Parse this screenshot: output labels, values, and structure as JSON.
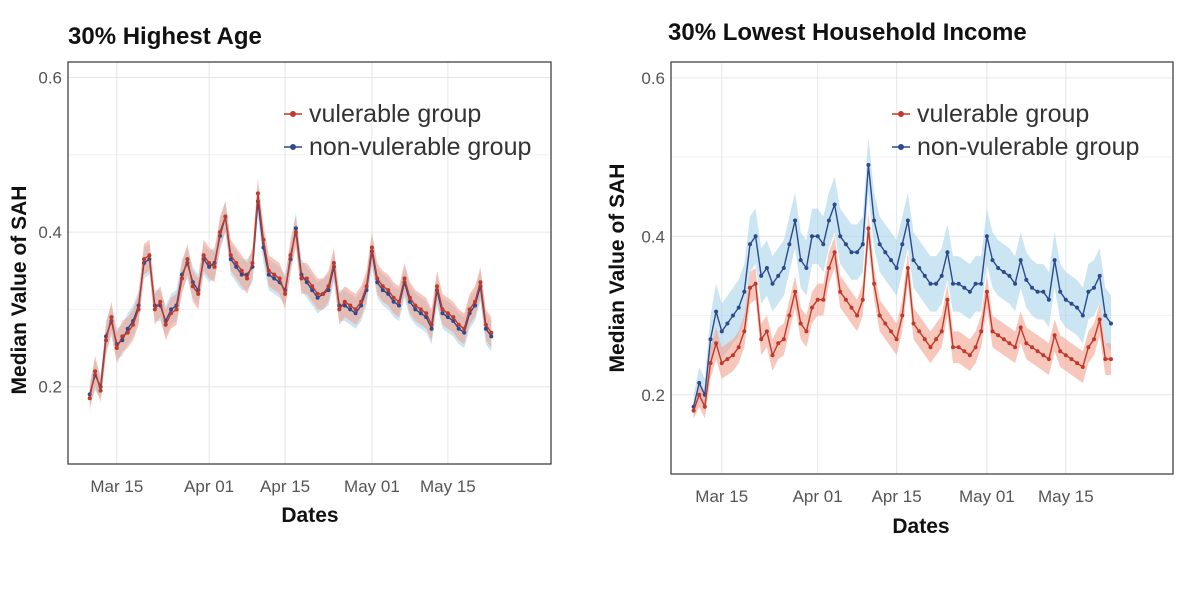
{
  "chart_data": [
    {
      "type": "line",
      "title": "30% Highest Age",
      "xlabel": "Dates",
      "ylabel": "Median Value of SAH",
      "x_ticks": [
        "Mar 15",
        "Apr 01",
        "Apr 15",
        "May 01",
        "May 15"
      ],
      "y_ticks": [
        "0.2",
        "0.4",
        "0.6"
      ],
      "ylim": [
        0.1,
        0.62
      ],
      "xlim": [
        "Mar 06",
        "Jun 03"
      ],
      "x_start": "Mar 10",
      "legend_position": "top-right",
      "grid": true,
      "series": [
        {
          "name": "vulerable group",
          "color": "#c0392b",
          "band_color": "#f2a28f",
          "values": [
            0.185,
            0.22,
            0.195,
            0.26,
            0.29,
            0.25,
            0.265,
            0.27,
            0.28,
            0.3,
            0.365,
            0.37,
            0.3,
            0.31,
            0.28,
            0.295,
            0.3,
            0.34,
            0.365,
            0.33,
            0.32,
            0.37,
            0.36,
            0.355,
            0.4,
            0.42,
            0.37,
            0.36,
            0.35,
            0.34,
            0.36,
            0.45,
            0.39,
            0.35,
            0.345,
            0.34,
            0.32,
            0.37,
            0.4,
            0.34,
            0.34,
            0.33,
            0.32,
            0.32,
            0.33,
            0.36,
            0.3,
            0.31,
            0.305,
            0.3,
            0.31,
            0.33,
            0.38,
            0.34,
            0.33,
            0.325,
            0.315,
            0.31,
            0.34,
            0.315,
            0.305,
            0.3,
            0.295,
            0.28,
            0.33,
            0.3,
            0.295,
            0.29,
            0.28,
            0.275,
            0.3,
            0.31,
            0.335,
            0.28,
            0.27
          ],
          "lower": [
            0.17,
            0.2,
            0.18,
            0.24,
            0.27,
            0.23,
            0.245,
            0.25,
            0.26,
            0.28,
            0.345,
            0.35,
            0.28,
            0.29,
            0.26,
            0.275,
            0.28,
            0.32,
            0.345,
            0.31,
            0.3,
            0.35,
            0.34,
            0.335,
            0.38,
            0.4,
            0.35,
            0.34,
            0.33,
            0.32,
            0.34,
            0.43,
            0.37,
            0.33,
            0.325,
            0.32,
            0.3,
            0.35,
            0.38,
            0.32,
            0.32,
            0.31,
            0.3,
            0.3,
            0.31,
            0.34,
            0.28,
            0.29,
            0.285,
            0.28,
            0.29,
            0.31,
            0.36,
            0.32,
            0.31,
            0.305,
            0.295,
            0.29,
            0.32,
            0.295,
            0.285,
            0.28,
            0.275,
            0.26,
            0.31,
            0.28,
            0.275,
            0.27,
            0.26,
            0.255,
            0.28,
            0.29,
            0.315,
            0.26,
            0.25
          ],
          "upper": [
            0.2,
            0.24,
            0.21,
            0.28,
            0.31,
            0.27,
            0.285,
            0.29,
            0.3,
            0.32,
            0.385,
            0.39,
            0.32,
            0.33,
            0.3,
            0.315,
            0.32,
            0.36,
            0.385,
            0.35,
            0.34,
            0.39,
            0.38,
            0.375,
            0.42,
            0.44,
            0.39,
            0.38,
            0.37,
            0.36,
            0.38,
            0.47,
            0.41,
            0.37,
            0.365,
            0.36,
            0.34,
            0.39,
            0.42,
            0.36,
            0.36,
            0.35,
            0.34,
            0.34,
            0.35,
            0.38,
            0.32,
            0.33,
            0.325,
            0.32,
            0.33,
            0.35,
            0.4,
            0.36,
            0.35,
            0.345,
            0.335,
            0.33,
            0.36,
            0.335,
            0.325,
            0.32,
            0.315,
            0.3,
            0.35,
            0.32,
            0.315,
            0.31,
            0.3,
            0.295,
            0.32,
            0.33,
            0.355,
            0.3,
            0.29
          ]
        },
        {
          "name": "non-vulerable group",
          "color": "#2c4a8c",
          "band_color": "#a9d4ea",
          "values": [
            0.19,
            0.215,
            0.2,
            0.265,
            0.285,
            0.255,
            0.26,
            0.275,
            0.285,
            0.305,
            0.36,
            0.365,
            0.305,
            0.305,
            0.285,
            0.3,
            0.305,
            0.345,
            0.36,
            0.335,
            0.325,
            0.365,
            0.355,
            0.36,
            0.395,
            0.42,
            0.365,
            0.355,
            0.345,
            0.345,
            0.355,
            0.44,
            0.38,
            0.345,
            0.34,
            0.335,
            0.325,
            0.365,
            0.405,
            0.345,
            0.335,
            0.325,
            0.315,
            0.32,
            0.325,
            0.355,
            0.305,
            0.305,
            0.3,
            0.295,
            0.305,
            0.325,
            0.375,
            0.335,
            0.325,
            0.32,
            0.31,
            0.305,
            0.335,
            0.31,
            0.3,
            0.295,
            0.29,
            0.275,
            0.325,
            0.295,
            0.29,
            0.285,
            0.275,
            0.27,
            0.295,
            0.305,
            0.33,
            0.275,
            0.265
          ],
          "lower": [
            0.175,
            0.195,
            0.185,
            0.245,
            0.265,
            0.235,
            0.24,
            0.255,
            0.265,
            0.285,
            0.34,
            0.345,
            0.285,
            0.285,
            0.265,
            0.28,
            0.285,
            0.325,
            0.34,
            0.315,
            0.305,
            0.345,
            0.335,
            0.34,
            0.375,
            0.4,
            0.345,
            0.335,
            0.325,
            0.325,
            0.335,
            0.42,
            0.36,
            0.325,
            0.32,
            0.315,
            0.305,
            0.345,
            0.385,
            0.325,
            0.315,
            0.305,
            0.295,
            0.3,
            0.305,
            0.335,
            0.285,
            0.285,
            0.28,
            0.275,
            0.285,
            0.305,
            0.355,
            0.315,
            0.305,
            0.3,
            0.29,
            0.285,
            0.315,
            0.29,
            0.28,
            0.275,
            0.27,
            0.255,
            0.305,
            0.275,
            0.27,
            0.265,
            0.255,
            0.25,
            0.275,
            0.285,
            0.31,
            0.255,
            0.245
          ],
          "upper": [
            0.205,
            0.235,
            0.215,
            0.285,
            0.305,
            0.275,
            0.28,
            0.295,
            0.305,
            0.325,
            0.38,
            0.385,
            0.325,
            0.325,
            0.305,
            0.32,
            0.325,
            0.365,
            0.38,
            0.355,
            0.345,
            0.385,
            0.375,
            0.38,
            0.415,
            0.44,
            0.385,
            0.375,
            0.365,
            0.365,
            0.375,
            0.46,
            0.4,
            0.365,
            0.36,
            0.355,
            0.345,
            0.385,
            0.425,
            0.365,
            0.355,
            0.345,
            0.335,
            0.34,
            0.345,
            0.375,
            0.325,
            0.325,
            0.32,
            0.315,
            0.325,
            0.345,
            0.395,
            0.355,
            0.345,
            0.34,
            0.33,
            0.325,
            0.355,
            0.33,
            0.32,
            0.315,
            0.31,
            0.295,
            0.345,
            0.315,
            0.31,
            0.305,
            0.295,
            0.29,
            0.315,
            0.325,
            0.35,
            0.295,
            0.285
          ]
        }
      ]
    },
    {
      "type": "line",
      "title": "30% Lowest Household Income",
      "xlabel": "Dates",
      "ylabel": "Median Value of SAH",
      "x_ticks": [
        "Mar 15",
        "Apr 01",
        "Apr 15",
        "May 01",
        "May 15"
      ],
      "y_ticks": [
        "0.2",
        "0.4",
        "0.6"
      ],
      "ylim": [
        0.1,
        0.62
      ],
      "xlim": [
        "Mar 06",
        "Jun 03"
      ],
      "x_start": "Mar 10",
      "legend_position": "top-right",
      "grid": true,
      "series": [
        {
          "name": "vulerable group",
          "color": "#c0392b",
          "band_color": "#f2a28f",
          "values": [
            0.18,
            0.2,
            0.185,
            0.24,
            0.265,
            0.24,
            0.245,
            0.25,
            0.26,
            0.28,
            0.335,
            0.34,
            0.27,
            0.28,
            0.25,
            0.265,
            0.27,
            0.3,
            0.33,
            0.29,
            0.28,
            0.31,
            0.32,
            0.32,
            0.36,
            0.38,
            0.33,
            0.32,
            0.31,
            0.3,
            0.32,
            0.41,
            0.34,
            0.3,
            0.29,
            0.28,
            0.27,
            0.3,
            0.36,
            0.29,
            0.28,
            0.27,
            0.26,
            0.27,
            0.28,
            0.32,
            0.26,
            0.26,
            0.255,
            0.25,
            0.26,
            0.28,
            0.33,
            0.28,
            0.275,
            0.27,
            0.265,
            0.26,
            0.285,
            0.265,
            0.26,
            0.255,
            0.25,
            0.245,
            0.275,
            0.255,
            0.25,
            0.245,
            0.24,
            0.235,
            0.26,
            0.27,
            0.295,
            0.245,
            0.245
          ],
          "lower": [
            0.17,
            0.185,
            0.17,
            0.22,
            0.245,
            0.22,
            0.225,
            0.23,
            0.24,
            0.26,
            0.315,
            0.32,
            0.25,
            0.26,
            0.23,
            0.245,
            0.25,
            0.28,
            0.31,
            0.27,
            0.26,
            0.29,
            0.3,
            0.3,
            0.34,
            0.36,
            0.31,
            0.3,
            0.29,
            0.28,
            0.3,
            0.39,
            0.32,
            0.28,
            0.27,
            0.26,
            0.25,
            0.28,
            0.34,
            0.27,
            0.26,
            0.25,
            0.24,
            0.25,
            0.26,
            0.3,
            0.24,
            0.24,
            0.235,
            0.23,
            0.24,
            0.26,
            0.31,
            0.26,
            0.255,
            0.25,
            0.245,
            0.24,
            0.265,
            0.245,
            0.24,
            0.235,
            0.23,
            0.225,
            0.255,
            0.235,
            0.23,
            0.225,
            0.22,
            0.215,
            0.24,
            0.25,
            0.275,
            0.225,
            0.225
          ],
          "upper": [
            0.19,
            0.215,
            0.2,
            0.26,
            0.285,
            0.26,
            0.265,
            0.27,
            0.28,
            0.3,
            0.355,
            0.36,
            0.29,
            0.3,
            0.27,
            0.285,
            0.29,
            0.32,
            0.35,
            0.31,
            0.3,
            0.33,
            0.34,
            0.34,
            0.38,
            0.4,
            0.35,
            0.34,
            0.33,
            0.32,
            0.34,
            0.43,
            0.36,
            0.32,
            0.31,
            0.3,
            0.29,
            0.32,
            0.38,
            0.31,
            0.3,
            0.29,
            0.28,
            0.29,
            0.3,
            0.34,
            0.28,
            0.28,
            0.275,
            0.27,
            0.28,
            0.3,
            0.35,
            0.3,
            0.295,
            0.29,
            0.285,
            0.28,
            0.305,
            0.285,
            0.28,
            0.275,
            0.27,
            0.265,
            0.295,
            0.275,
            0.27,
            0.265,
            0.26,
            0.255,
            0.28,
            0.29,
            0.315,
            0.265,
            0.265
          ]
        },
        {
          "name": "non-vulerable group",
          "color": "#2c4a8c",
          "band_color": "#a9d4ea",
          "values": [
            0.185,
            0.215,
            0.2,
            0.27,
            0.305,
            0.28,
            0.29,
            0.3,
            0.31,
            0.33,
            0.39,
            0.4,
            0.35,
            0.36,
            0.34,
            0.35,
            0.36,
            0.39,
            0.42,
            0.37,
            0.36,
            0.4,
            0.4,
            0.39,
            0.42,
            0.44,
            0.4,
            0.39,
            0.38,
            0.38,
            0.39,
            0.49,
            0.42,
            0.39,
            0.38,
            0.37,
            0.36,
            0.39,
            0.42,
            0.37,
            0.36,
            0.35,
            0.34,
            0.34,
            0.35,
            0.38,
            0.34,
            0.34,
            0.335,
            0.33,
            0.34,
            0.34,
            0.4,
            0.37,
            0.36,
            0.355,
            0.35,
            0.34,
            0.37,
            0.345,
            0.335,
            0.33,
            0.33,
            0.32,
            0.37,
            0.33,
            0.32,
            0.315,
            0.31,
            0.3,
            0.33,
            0.335,
            0.35,
            0.3,
            0.29
          ],
          "lower": [
            0.17,
            0.195,
            0.18,
            0.24,
            0.27,
            0.245,
            0.255,
            0.265,
            0.275,
            0.295,
            0.355,
            0.365,
            0.315,
            0.325,
            0.305,
            0.315,
            0.325,
            0.355,
            0.385,
            0.335,
            0.325,
            0.365,
            0.365,
            0.355,
            0.385,
            0.405,
            0.365,
            0.355,
            0.345,
            0.345,
            0.355,
            0.455,
            0.385,
            0.355,
            0.345,
            0.335,
            0.325,
            0.355,
            0.385,
            0.335,
            0.325,
            0.315,
            0.305,
            0.305,
            0.315,
            0.345,
            0.305,
            0.305,
            0.3,
            0.295,
            0.305,
            0.305,
            0.365,
            0.335,
            0.325,
            0.32,
            0.315,
            0.305,
            0.335,
            0.31,
            0.3,
            0.295,
            0.295,
            0.285,
            0.335,
            0.295,
            0.285,
            0.28,
            0.275,
            0.265,
            0.295,
            0.3,
            0.315,
            0.265,
            0.255
          ],
          "upper": [
            0.2,
            0.235,
            0.22,
            0.3,
            0.34,
            0.315,
            0.325,
            0.335,
            0.345,
            0.365,
            0.425,
            0.435,
            0.385,
            0.395,
            0.375,
            0.385,
            0.395,
            0.425,
            0.455,
            0.405,
            0.395,
            0.435,
            0.435,
            0.425,
            0.455,
            0.475,
            0.435,
            0.425,
            0.415,
            0.415,
            0.425,
            0.525,
            0.455,
            0.425,
            0.415,
            0.405,
            0.395,
            0.425,
            0.455,
            0.405,
            0.395,
            0.385,
            0.375,
            0.375,
            0.385,
            0.415,
            0.375,
            0.375,
            0.37,
            0.365,
            0.375,
            0.375,
            0.435,
            0.405,
            0.395,
            0.39,
            0.385,
            0.375,
            0.405,
            0.38,
            0.37,
            0.365,
            0.365,
            0.355,
            0.405,
            0.365,
            0.355,
            0.35,
            0.345,
            0.335,
            0.365,
            0.37,
            0.385,
            0.335,
            0.325
          ]
        }
      ]
    }
  ]
}
